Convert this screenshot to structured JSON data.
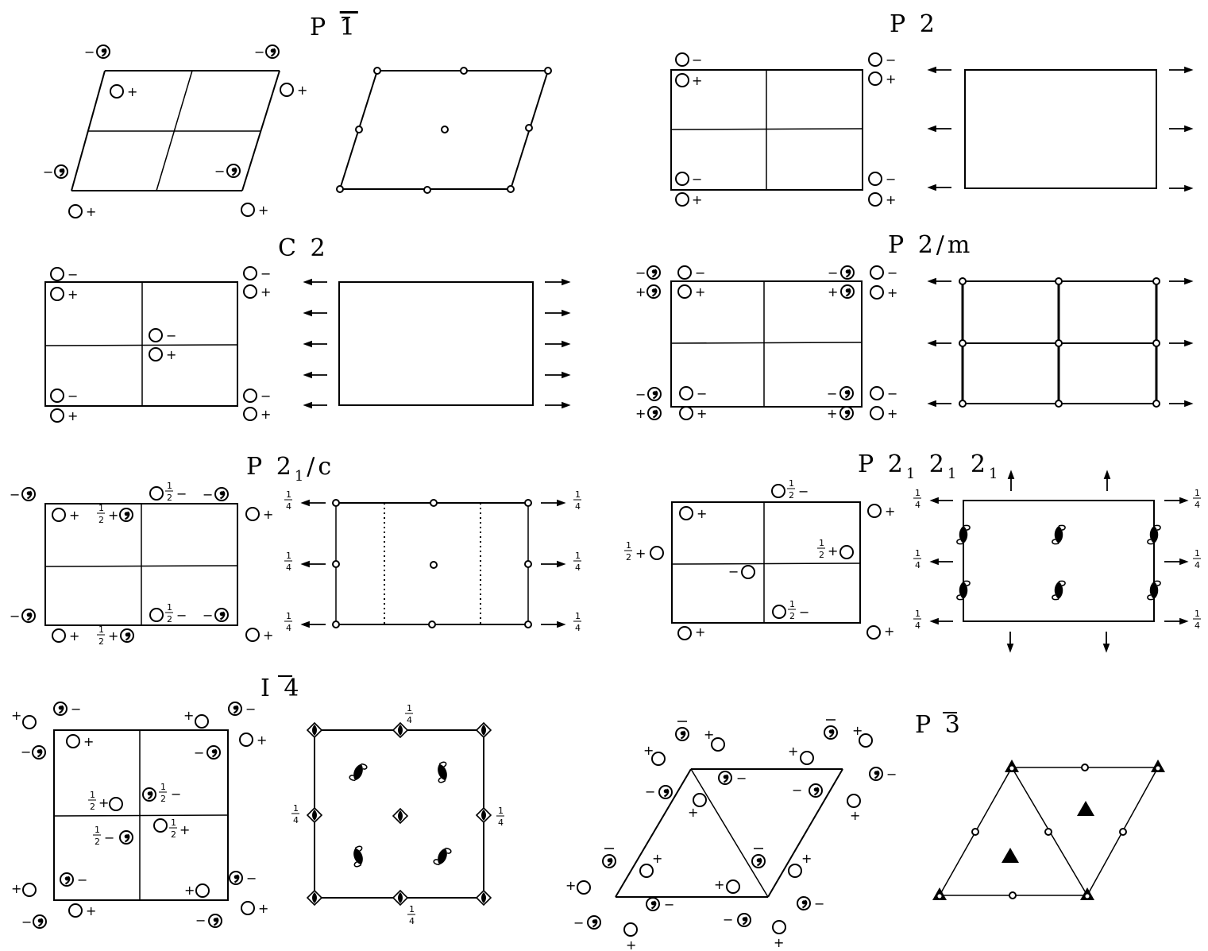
{
  "groups": [
    {
      "symbol": "P",
      "bar": "1",
      "suffix": ""
    },
    {
      "symbol": "P 2",
      "bar": "",
      "suffix": ""
    },
    {
      "symbol": "C 2",
      "bar": "",
      "suffix": ""
    },
    {
      "symbol": "P 2/m",
      "bar": "",
      "suffix": ""
    },
    {
      "symbol": "P 2",
      "sub": "1",
      "suffix": "/c"
    },
    {
      "symbol": "P 2",
      "sub": "1",
      "mid": " 2",
      "sub2": "1",
      "mid2": " 2",
      "sub3": "1"
    },
    {
      "symbol": "I",
      "bar": "4",
      "suffix": ""
    },
    {
      "symbol": "P",
      "bar": "3",
      "suffix": ""
    }
  ],
  "signs": {
    "plus": "+",
    "minus": "−"
  },
  "fractions": {
    "half_num": "1",
    "half_den": "2",
    "quarter_num": "1",
    "quarter_den": "4"
  }
}
